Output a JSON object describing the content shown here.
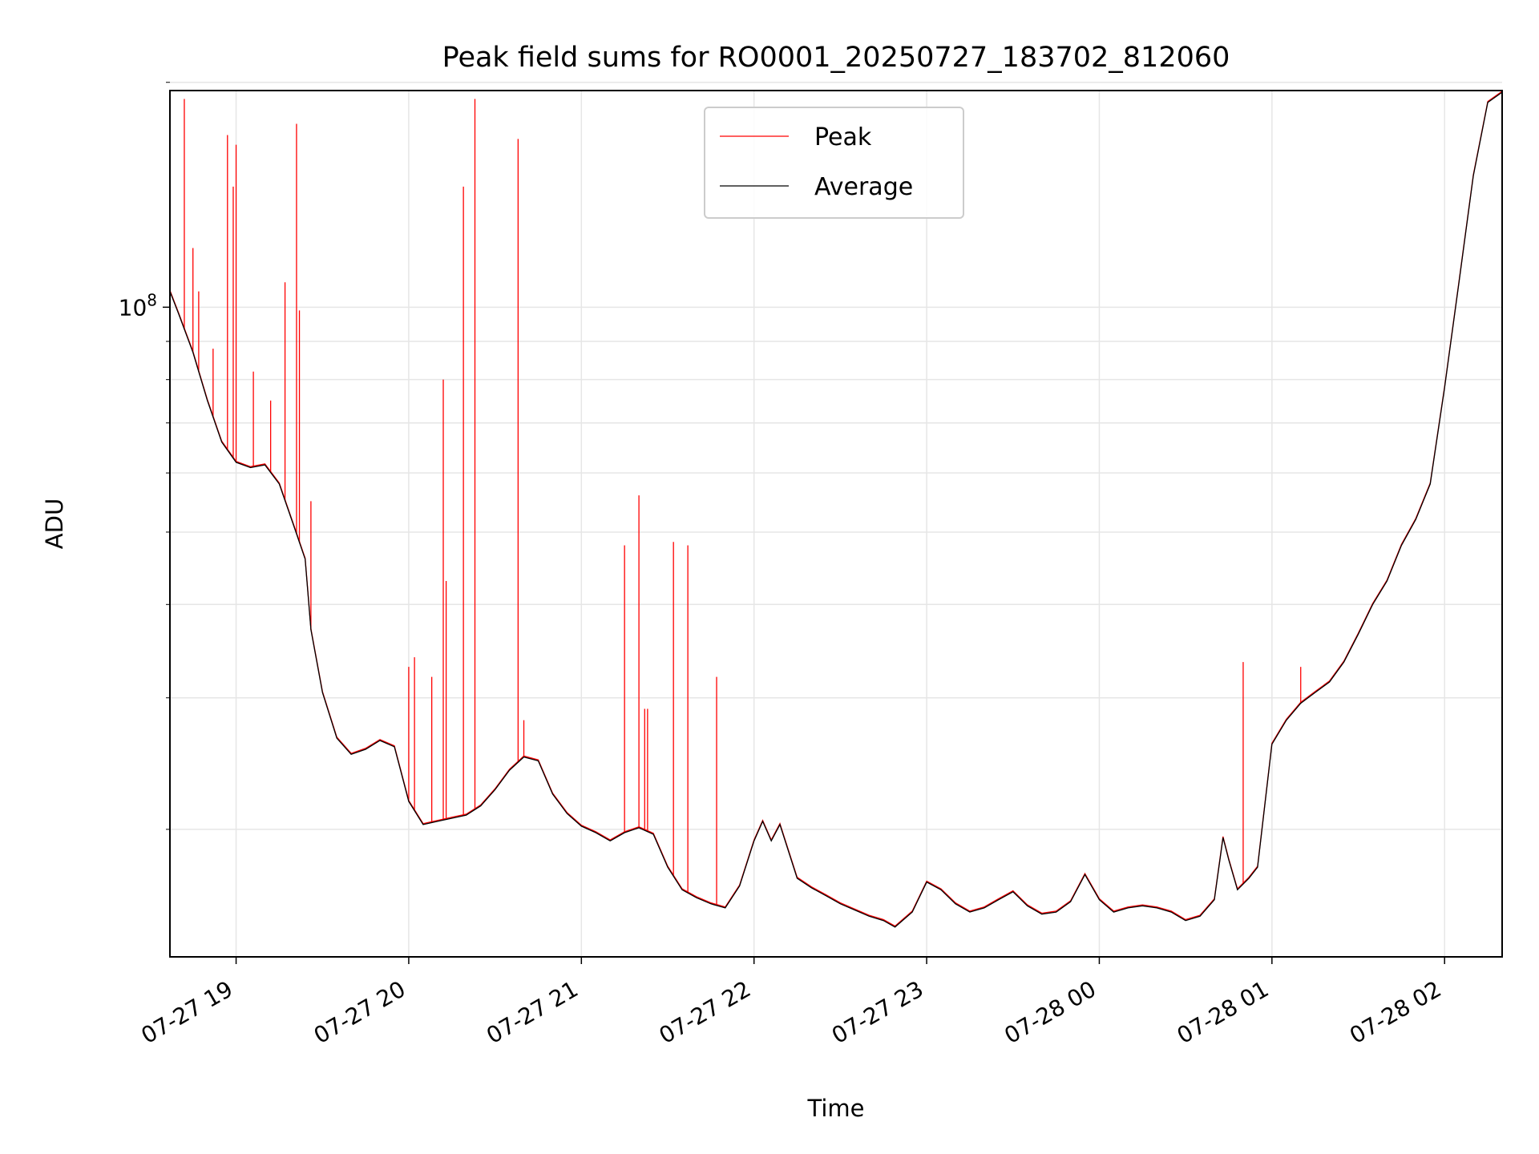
{
  "chart_data": {
    "type": "line",
    "title": "Peak field sums for RO0001_20250727_183702_812060",
    "xlabel": "Time",
    "ylabel": "ADU",
    "y_scale": "log",
    "ylim": [
      13500000,
      195000000
    ],
    "xlim": [
      "2025-07-27 18:37",
      "2025-07-28 02:20"
    ],
    "grid": true,
    "legend_position": "upper center",
    "x_ticks": [
      {
        "t": "2025-07-27 19:00",
        "label": "07-27 19"
      },
      {
        "t": "2025-07-27 20:00",
        "label": "07-27 20"
      },
      {
        "t": "2025-07-27 21:00",
        "label": "07-27 21"
      },
      {
        "t": "2025-07-27 22:00",
        "label": "07-27 22"
      },
      {
        "t": "2025-07-27 23:00",
        "label": "07-27 23"
      },
      {
        "t": "2025-07-28 00:00",
        "label": "07-28 00"
      },
      {
        "t": "2025-07-28 01:00",
        "label": "07-28 01"
      },
      {
        "t": "2025-07-28 02:00",
        "label": "07-28 02"
      }
    ],
    "y_major_ticks": [
      {
        "value": 100000000,
        "base": "10",
        "exp": "8"
      }
    ],
    "y_minor_ticks": [
      20000000,
      30000000,
      40000000,
      50000000,
      60000000,
      70000000,
      80000000,
      90000000,
      200000000
    ],
    "series": [
      {
        "name": "Average",
        "color": "#000000",
        "points": [
          [
            "2025-07-27 18:37",
            105000000
          ],
          [
            "2025-07-27 18:40",
            98000000
          ],
          [
            "2025-07-27 18:45",
            87000000
          ],
          [
            "2025-07-27 18:50",
            75000000
          ],
          [
            "2025-07-27 18:55",
            66000000
          ],
          [
            "2025-07-27 19:00",
            62000000
          ],
          [
            "2025-07-27 19:05",
            61000000
          ],
          [
            "2025-07-27 19:10",
            61500000
          ],
          [
            "2025-07-27 19:15",
            58000000
          ],
          [
            "2025-07-27 19:20",
            51000000
          ],
          [
            "2025-07-27 19:24",
            46000000
          ],
          [
            "2025-07-27 19:26",
            37000000
          ],
          [
            "2025-07-27 19:30",
            30500000
          ],
          [
            "2025-07-27 19:35",
            26500000
          ],
          [
            "2025-07-27 19:40",
            25200000
          ],
          [
            "2025-07-27 19:45",
            25600000
          ],
          [
            "2025-07-27 19:50",
            26300000
          ],
          [
            "2025-07-27 19:55",
            25800000
          ],
          [
            "2025-07-27 20:00",
            21800000
          ],
          [
            "2025-07-27 20:05",
            20300000
          ],
          [
            "2025-07-27 20:10",
            20500000
          ],
          [
            "2025-07-27 20:15",
            20700000
          ],
          [
            "2025-07-27 20:20",
            20900000
          ],
          [
            "2025-07-27 20:25",
            21500000
          ],
          [
            "2025-07-27 20:30",
            22600000
          ],
          [
            "2025-07-27 20:35",
            24000000
          ],
          [
            "2025-07-27 20:40",
            25000000
          ],
          [
            "2025-07-27 20:45",
            24700000
          ],
          [
            "2025-07-27 20:50",
            22300000
          ],
          [
            "2025-07-27 20:55",
            21000000
          ],
          [
            "2025-07-27 21:00",
            20200000
          ],
          [
            "2025-07-27 21:05",
            19800000
          ],
          [
            "2025-07-27 21:10",
            19300000
          ],
          [
            "2025-07-27 21:15",
            19800000
          ],
          [
            "2025-07-27 21:20",
            20100000
          ],
          [
            "2025-07-27 21:25",
            19700000
          ],
          [
            "2025-07-27 21:30",
            17800000
          ],
          [
            "2025-07-27 21:35",
            16600000
          ],
          [
            "2025-07-27 21:40",
            16200000
          ],
          [
            "2025-07-27 21:45",
            15900000
          ],
          [
            "2025-07-27 21:50",
            15700000
          ],
          [
            "2025-07-27 21:55",
            16800000
          ],
          [
            "2025-07-27 22:00",
            19300000
          ],
          [
            "2025-07-27 22:03",
            20500000
          ],
          [
            "2025-07-27 22:06",
            19300000
          ],
          [
            "2025-07-27 22:09",
            20300000
          ],
          [
            "2025-07-27 22:15",
            17200000
          ],
          [
            "2025-07-27 22:20",
            16700000
          ],
          [
            "2025-07-27 22:25",
            16300000
          ],
          [
            "2025-07-27 22:30",
            15900000
          ],
          [
            "2025-07-27 22:35",
            15600000
          ],
          [
            "2025-07-27 22:40",
            15300000
          ],
          [
            "2025-07-27 22:45",
            15100000
          ],
          [
            "2025-07-27 22:49",
            14800000
          ],
          [
            "2025-07-27 22:55",
            15500000
          ],
          [
            "2025-07-27 23:00",
            17000000
          ],
          [
            "2025-07-27 23:05",
            16600000
          ],
          [
            "2025-07-27 23:10",
            15900000
          ],
          [
            "2025-07-27 23:15",
            15500000
          ],
          [
            "2025-07-27 23:20",
            15700000
          ],
          [
            "2025-07-27 23:25",
            16100000
          ],
          [
            "2025-07-27 23:30",
            16500000
          ],
          [
            "2025-07-27 23:35",
            15800000
          ],
          [
            "2025-07-27 23:40",
            15400000
          ],
          [
            "2025-07-27 23:45",
            15500000
          ],
          [
            "2025-07-27 23:50",
            16000000
          ],
          [
            "2025-07-27 23:55",
            17400000
          ],
          [
            "2025-07-28 00:00",
            16100000
          ],
          [
            "2025-07-28 00:05",
            15500000
          ],
          [
            "2025-07-28 00:10",
            15700000
          ],
          [
            "2025-07-28 00:15",
            15800000
          ],
          [
            "2025-07-28 00:20",
            15700000
          ],
          [
            "2025-07-28 00:25",
            15500000
          ],
          [
            "2025-07-28 00:30",
            15100000
          ],
          [
            "2025-07-28 00:35",
            15300000
          ],
          [
            "2025-07-28 00:40",
            16100000
          ],
          [
            "2025-07-28 00:43",
            19500000
          ],
          [
            "2025-07-28 00:45",
            18200000
          ],
          [
            "2025-07-28 00:48",
            16600000
          ],
          [
            "2025-07-28 00:52",
            17200000
          ],
          [
            "2025-07-28 00:55",
            17800000
          ],
          [
            "2025-07-28 01:00",
            26000000
          ],
          [
            "2025-07-28 01:05",
            28000000
          ],
          [
            "2025-07-28 01:10",
            29500000
          ],
          [
            "2025-07-28 01:15",
            30500000
          ],
          [
            "2025-07-28 01:20",
            31500000
          ],
          [
            "2025-07-28 01:25",
            33500000
          ],
          [
            "2025-07-28 01:30",
            36500000
          ],
          [
            "2025-07-28 01:35",
            40000000
          ],
          [
            "2025-07-28 01:40",
            43000000
          ],
          [
            "2025-07-28 01:45",
            48000000
          ],
          [
            "2025-07-28 01:50",
            52000000
          ],
          [
            "2025-07-28 01:55",
            58000000
          ],
          [
            "2025-07-28 02:00",
            78000000
          ],
          [
            "2025-07-28 02:05",
            108000000
          ],
          [
            "2025-07-28 02:10",
            150000000
          ],
          [
            "2025-07-28 02:15",
            188000000
          ],
          [
            "2025-07-28 02:20",
            194000000
          ]
        ]
      },
      {
        "name": "Peak",
        "color": "#ff0000",
        "spikes": [
          [
            "2025-07-27 18:42",
            190000000
          ],
          [
            "2025-07-27 18:45",
            120000000
          ],
          [
            "2025-07-27 18:47",
            105000000
          ],
          [
            "2025-07-27 18:52",
            88000000
          ],
          [
            "2025-07-27 18:57",
            170000000
          ],
          [
            "2025-07-27 18:59",
            145000000
          ],
          [
            "2025-07-27 19:00",
            165000000
          ],
          [
            "2025-07-27 19:06",
            82000000
          ],
          [
            "2025-07-27 19:12",
            75000000
          ],
          [
            "2025-07-27 19:17",
            108000000
          ],
          [
            "2025-07-27 19:21",
            176000000
          ],
          [
            "2025-07-27 19:22",
            99000000
          ],
          [
            "2025-07-27 19:26",
            55000000
          ],
          [
            "2025-07-27 20:00",
            33000000
          ],
          [
            "2025-07-27 20:02",
            34000000
          ],
          [
            "2025-07-27 20:08",
            32000000
          ],
          [
            "2025-07-27 20:12",
            80000000
          ],
          [
            "2025-07-27 20:13",
            43000000
          ],
          [
            "2025-07-27 20:19",
            145000000
          ],
          [
            "2025-07-27 20:23",
            190000000
          ],
          [
            "2025-07-27 20:38",
            168000000
          ],
          [
            "2025-07-27 20:40",
            28000000
          ],
          [
            "2025-07-27 21:15",
            48000000
          ],
          [
            "2025-07-27 21:20",
            56000000
          ],
          [
            "2025-07-27 21:22",
            29000000
          ],
          [
            "2025-07-27 21:23",
            29000000
          ],
          [
            "2025-07-27 21:32",
            48500000
          ],
          [
            "2025-07-27 21:37",
            48000000
          ],
          [
            "2025-07-27 21:47",
            32000000
          ],
          [
            "2025-07-28 00:50",
            33500000
          ],
          [
            "2025-07-28 01:10",
            33000000
          ]
        ]
      }
    ]
  }
}
